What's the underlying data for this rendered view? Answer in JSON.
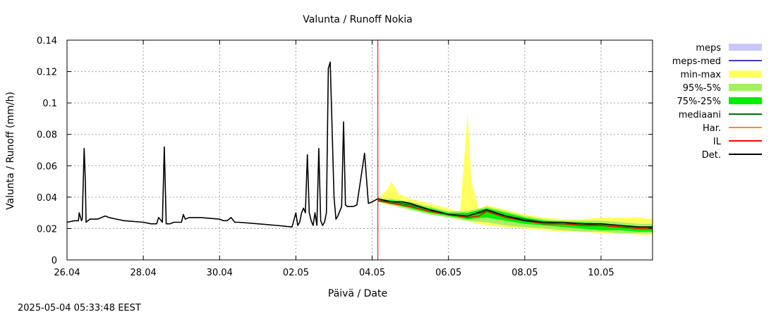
{
  "chart_data": {
    "type": "line",
    "title": "Valunta / Runoff  Nokia",
    "xlabel": "Päivä / Date",
    "ylabel": "Valunta / Runoff (mm/h)",
    "ylim": [
      0,
      0.14
    ],
    "xlim": [
      0,
      15.35
    ],
    "yticks": [
      0,
      0.02,
      0.04,
      0.06,
      0.08,
      0.1,
      0.12,
      0.14
    ],
    "ytick_labels": [
      "0",
      "0.02",
      "0.04",
      "0.06",
      "0.08",
      "0.1",
      "0.12",
      "0.14"
    ],
    "xticks": [
      0,
      2,
      4,
      6,
      8,
      10,
      12,
      14
    ],
    "xtick_labels": [
      "26.04",
      "28.04",
      "30.04",
      "02.05",
      "04.05",
      "06.05",
      "08.05",
      "10.05"
    ],
    "grid": true,
    "forecast_start": 8.15,
    "legend_position": "right",
    "legend": [
      {
        "label": "meps",
        "color": "#c8c8f8",
        "kind": "box"
      },
      {
        "label": "meps-med",
        "color": "#3c3cc8",
        "kind": "line"
      },
      {
        "label": "min-max",
        "color": "#ffff60",
        "kind": "box"
      },
      {
        "label": "95%-5%",
        "color": "#a6f060",
        "kind": "box"
      },
      {
        "label": "75%-25%",
        "color": "#00ee00",
        "kind": "box"
      },
      {
        "label": "mediaani",
        "color": "#007000",
        "kind": "line"
      },
      {
        "label": "Har.",
        "color": "#ff8c00",
        "kind": "line"
      },
      {
        "label": "IL",
        "color": "#ff0000",
        "kind": "line"
      },
      {
        "label": "Det.",
        "color": "#000000",
        "kind": "line"
      }
    ],
    "series": [
      {
        "name": "Det.",
        "x": [
          0,
          0.2,
          0.3,
          0.32,
          0.38,
          0.4,
          0.45,
          0.48,
          0.5,
          0.55,
          0.6,
          0.8,
          1.0,
          1.1,
          1.3,
          1.5,
          2.0,
          2.2,
          2.35,
          2.4,
          2.5,
          2.55,
          2.6,
          2.7,
          2.8,
          3.0,
          3.05,
          3.1,
          3.2,
          3.5,
          4.0,
          4.1,
          4.2,
          4.3,
          4.4,
          4.5,
          5.0,
          5.5,
          5.9,
          6.0,
          6.05,
          6.1,
          6.15,
          6.2,
          6.25,
          6.3,
          6.35,
          6.4,
          6.45,
          6.5,
          6.55,
          6.6,
          6.65,
          6.7,
          6.75,
          6.8,
          6.85,
          6.9,
          7.0,
          7.05,
          7.1,
          7.2,
          7.25,
          7.3,
          7.35,
          7.4,
          7.5,
          7.6,
          7.8,
          7.9,
          8.0,
          8.15,
          8.5,
          8.8,
          9.0,
          9.5,
          10.0,
          10.5,
          11.0,
          11.5,
          12.0,
          12.5,
          13.0,
          13.5,
          14.0,
          14.5,
          15.0,
          15.35
        ],
        "y": [
          0.024,
          0.025,
          0.025,
          0.03,
          0.025,
          0.026,
          0.071,
          0.05,
          0.024,
          0.025,
          0.026,
          0.026,
          0.028,
          0.027,
          0.026,
          0.025,
          0.024,
          0.023,
          0.023,
          0.027,
          0.024,
          0.072,
          0.023,
          0.023,
          0.024,
          0.024,
          0.029,
          0.026,
          0.027,
          0.027,
          0.026,
          0.025,
          0.025,
          0.027,
          0.024,
          0.024,
          0.023,
          0.022,
          0.021,
          0.03,
          0.022,
          0.024,
          0.03,
          0.033,
          0.03,
          0.067,
          0.03,
          0.025,
          0.022,
          0.03,
          0.022,
          0.071,
          0.025,
          0.022,
          0.024,
          0.03,
          0.122,
          0.126,
          0.04,
          0.026,
          0.028,
          0.034,
          0.088,
          0.035,
          0.034,
          0.034,
          0.034,
          0.035,
          0.068,
          0.036,
          0.037,
          0.039,
          0.037,
          0.037,
          0.036,
          0.032,
          0.029,
          0.028,
          0.032,
          0.028,
          0.025,
          0.024,
          0.024,
          0.023,
          0.023,
          0.022,
          0.021,
          0.021
        ]
      },
      {
        "name": "IL",
        "x": [
          8.15,
          8.5,
          9.0,
          9.5,
          10.0,
          10.5,
          10.8,
          11.0,
          11.5,
          12.0,
          12.5,
          13.0,
          13.5,
          14.0,
          14.5,
          15.0,
          15.35
        ],
        "y": [
          0.038,
          0.036,
          0.034,
          0.031,
          0.029,
          0.027,
          0.028,
          0.031,
          0.027,
          0.025,
          0.023,
          0.023,
          0.022,
          0.022,
          0.021,
          0.02,
          0.02
        ]
      },
      {
        "name": "mediaani",
        "x": [
          8.15,
          8.5,
          9.0,
          9.5,
          10.0,
          10.5,
          11.0,
          11.5,
          12.0,
          12.5,
          13.0,
          13.5,
          14.0,
          14.5,
          15.0,
          15.35
        ],
        "y": [
          0.038,
          0.037,
          0.035,
          0.032,
          0.029,
          0.028,
          0.031,
          0.028,
          0.026,
          0.024,
          0.023,
          0.023,
          0.022,
          0.021,
          0.02,
          0.02
        ]
      },
      {
        "name": "min-max",
        "x": [
          8.15,
          8.4,
          8.5,
          8.7,
          9.0,
          9.5,
          10.0,
          10.3,
          10.4,
          10.5,
          10.6,
          10.8,
          11.0,
          11.5,
          12.0,
          12.5,
          13.0,
          13.5,
          14.0,
          14.5,
          15.0,
          15.35
        ],
        "y_low": [
          0.037,
          0.035,
          0.035,
          0.034,
          0.032,
          0.029,
          0.027,
          0.026,
          0.025,
          0.025,
          0.024,
          0.023,
          0.022,
          0.021,
          0.02,
          0.019,
          0.018,
          0.018,
          0.017,
          0.017,
          0.016,
          0.016
        ],
        "y_high": [
          0.039,
          0.045,
          0.05,
          0.042,
          0.039,
          0.036,
          0.033,
          0.03,
          0.06,
          0.094,
          0.05,
          0.032,
          0.035,
          0.032,
          0.029,
          0.027,
          0.026,
          0.026,
          0.027,
          0.027,
          0.027,
          0.026
        ]
      },
      {
        "name": "95%-5%",
        "x": [
          8.15,
          8.5,
          9.0,
          9.5,
          10.0,
          10.5,
          11.0,
          11.5,
          12.0,
          12.5,
          13.0,
          13.5,
          14.0,
          14.5,
          15.0,
          15.35
        ],
        "y_low": [
          0.037,
          0.035,
          0.032,
          0.029,
          0.027,
          0.025,
          0.024,
          0.022,
          0.021,
          0.02,
          0.019,
          0.018,
          0.018,
          0.017,
          0.017,
          0.017
        ],
        "y_high": [
          0.039,
          0.039,
          0.037,
          0.034,
          0.031,
          0.031,
          0.034,
          0.031,
          0.028,
          0.026,
          0.025,
          0.025,
          0.025,
          0.024,
          0.023,
          0.023
        ]
      },
      {
        "name": "75%-25%",
        "x": [
          8.15,
          8.5,
          9.0,
          9.5,
          10.0,
          10.5,
          11.0,
          11.5,
          12.0,
          12.5,
          13.0,
          13.5,
          14.0,
          14.5,
          15.0,
          15.35
        ],
        "y_low": [
          0.037,
          0.036,
          0.033,
          0.03,
          0.028,
          0.026,
          0.027,
          0.025,
          0.023,
          0.022,
          0.021,
          0.02,
          0.019,
          0.019,
          0.018,
          0.018
        ],
        "y_high": [
          0.038,
          0.038,
          0.036,
          0.033,
          0.03,
          0.03,
          0.033,
          0.03,
          0.027,
          0.025,
          0.024,
          0.024,
          0.023,
          0.022,
          0.021,
          0.021
        ]
      }
    ]
  },
  "footer": {
    "timestamp": "2025-05-04  05:33:48 EEST"
  }
}
